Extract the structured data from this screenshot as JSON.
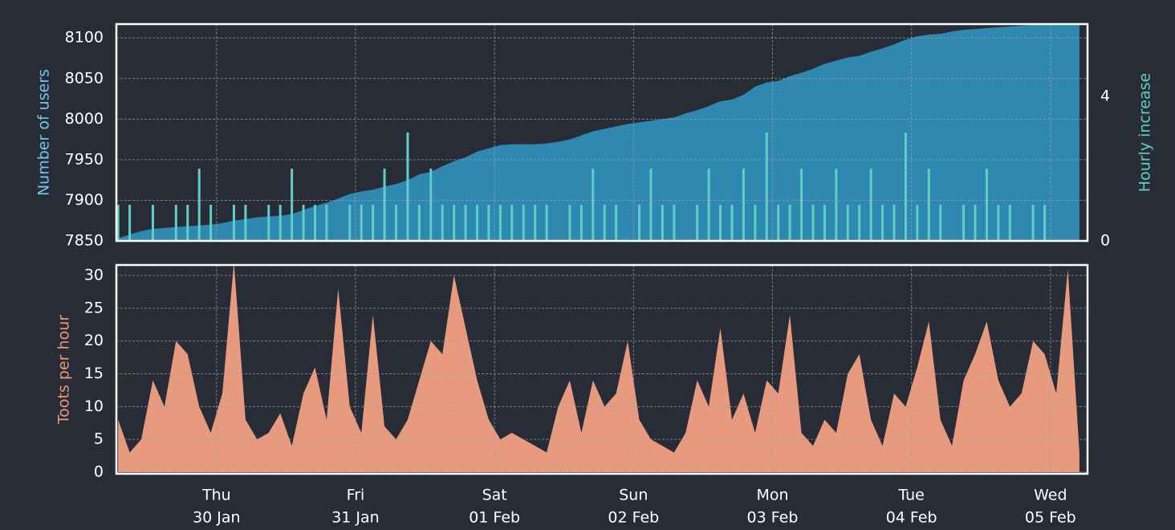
{
  "chart_data": [
    {
      "type": "area",
      "ylabel": "Number of users",
      "y2label": "Hourly increase",
      "ylabel_color": "#6ec6e8",
      "y2label_color": "#5fcfc5",
      "x": [
        7,
        9,
        11,
        13,
        15,
        17,
        19,
        21,
        23,
        25,
        27,
        29,
        31,
        33,
        35,
        37,
        39,
        41,
        43,
        45,
        47,
        49,
        51,
        53,
        55,
        57,
        59,
        61,
        63,
        65,
        67,
        69,
        71,
        73,
        75,
        77,
        79,
        81,
        83,
        85,
        87,
        89,
        91,
        93,
        95,
        97,
        99,
        101,
        103,
        105,
        107,
        109,
        111,
        113,
        115,
        117,
        119,
        121,
        123,
        125,
        127,
        129,
        131,
        133,
        135,
        137,
        139,
        141,
        143,
        145,
        147,
        149,
        151,
        153,
        155,
        157,
        159,
        161,
        163,
        165,
        167,
        169,
        171,
        173
      ],
      "series": [
        {
          "type": "area",
          "axis": "y",
          "color": "#2f88b0",
          "values": [
            7853,
            7858,
            7862,
            7865,
            7866,
            7867,
            7868,
            7869,
            7870,
            7872,
            7875,
            7877,
            7879,
            7880,
            7881,
            7883,
            7888,
            7893,
            7897,
            7902,
            7908,
            7911,
            7913,
            7917,
            7920,
            7925,
            7932,
            7935,
            7942,
            7948,
            7953,
            7960,
            7964,
            7968,
            7969,
            7969,
            7969,
            7970,
            7972,
            7975,
            7980,
            7985,
            7988,
            7991,
            7994,
            7996,
            7998,
            8000,
            8002,
            8007,
            8011,
            8016,
            8022,
            8024,
            8030,
            8040,
            8045,
            8047,
            8053,
            8057,
            8062,
            8068,
            8072,
            8076,
            8078,
            8083,
            8087,
            8092,
            8098,
            8102,
            8104,
            8105,
            8108,
            8110,
            8111,
            8112,
            8113,
            8114,
            8115,
            8116,
            8117,
            8117,
            8117,
            8117
          ]
        },
        {
          "type": "bar",
          "axis": "y2",
          "color": "#5fcfc5",
          "values": [
            1,
            1,
            0,
            1,
            0,
            1,
            1,
            2,
            1,
            0,
            1,
            1,
            0,
            1,
            1,
            2,
            1,
            1,
            1,
            0,
            1,
            1,
            1,
            2,
            1,
            3,
            1,
            2,
            1,
            1,
            1,
            1,
            1,
            1,
            1,
            1,
            1,
            1,
            0,
            1,
            1,
            2,
            1,
            1,
            0,
            1,
            2,
            1,
            1,
            0,
            1,
            2,
            1,
            1,
            2,
            1,
            3,
            1,
            1,
            2,
            1,
            1,
            2,
            1,
            1,
            2,
            1,
            1,
            3,
            1,
            2,
            1,
            0,
            1,
            1,
            2,
            1,
            1,
            0,
            1,
            1,
            0,
            0,
            0
          ]
        }
      ],
      "xlim": [
        6.7,
        174.4
      ],
      "xticks": [
        24,
        48,
        72,
        96,
        120,
        144,
        168
      ],
      "ylim": [
        7850,
        8117
      ],
      "yticks": [
        7850,
        7900,
        7950,
        8000,
        8050,
        8100
      ],
      "y2lim": [
        0,
        6
      ],
      "y2ticks": [
        0,
        4
      ],
      "grid": true
    },
    {
      "type": "area",
      "ylabel": "Toots per hour",
      "ylabel_color": "#e8957a",
      "x": [
        7,
        9,
        11,
        13,
        15,
        17,
        19,
        21,
        23,
        25,
        27,
        29,
        31,
        33,
        35,
        37,
        39,
        41,
        43,
        45,
        47,
        49,
        51,
        53,
        55,
        57,
        59,
        61,
        63,
        65,
        67,
        69,
        71,
        73,
        75,
        77,
        79,
        81,
        83,
        85,
        87,
        89,
        91,
        93,
        95,
        97,
        99,
        101,
        103,
        105,
        107,
        109,
        111,
        113,
        115,
        117,
        119,
        121,
        123,
        125,
        127,
        129,
        131,
        133,
        135,
        137,
        139,
        141,
        143,
        145,
        147,
        149,
        151,
        153,
        155,
        157,
        159,
        161,
        163,
        165,
        167,
        169,
        171,
        173
      ],
      "series": [
        {
          "type": "area",
          "axis": "y",
          "color": "#e89a7e",
          "values": [
            8,
            3,
            5,
            14,
            10,
            20,
            18,
            10,
            6,
            12,
            32,
            8,
            5,
            6,
            9,
            4,
            12,
            16,
            8,
            28,
            10,
            6,
            24,
            7,
            5,
            8,
            14,
            20,
            18,
            30,
            22,
            14,
            8,
            5,
            6,
            5,
            4,
            3,
            10,
            14,
            6,
            14,
            10,
            12,
            20,
            8,
            5,
            4,
            3,
            6,
            14,
            10,
            22,
            8,
            12,
            6,
            14,
            12,
            24,
            6,
            4,
            8,
            6,
            15,
            18,
            8,
            4,
            12,
            10,
            16,
            23,
            8,
            4,
            14,
            18,
            23,
            14,
            10,
            12,
            20,
            18,
            12,
            31,
            3
          ]
        }
      ],
      "xlim": [
        6.7,
        174.4
      ],
      "xticks": [
        {
          "value": 24,
          "label": "Thu",
          "date": "30 Jan"
        },
        {
          "value": 48,
          "label": "Fri",
          "date": "31 Jan"
        },
        {
          "value": 72,
          "label": "Sat",
          "date": "01 Feb"
        },
        {
          "value": 96,
          "label": "Sun",
          "date": "02 Feb"
        },
        {
          "value": 120,
          "label": "Mon",
          "date": "03 Feb"
        },
        {
          "value": 144,
          "label": "Tue",
          "date": "04 Feb"
        },
        {
          "value": 168,
          "label": "Wed",
          "date": "05 Feb"
        }
      ],
      "ylim": [
        -0.25,
        31.6
      ],
      "yticks": [
        0,
        5,
        10,
        15,
        20,
        25,
        30
      ],
      "grid": true
    }
  ]
}
